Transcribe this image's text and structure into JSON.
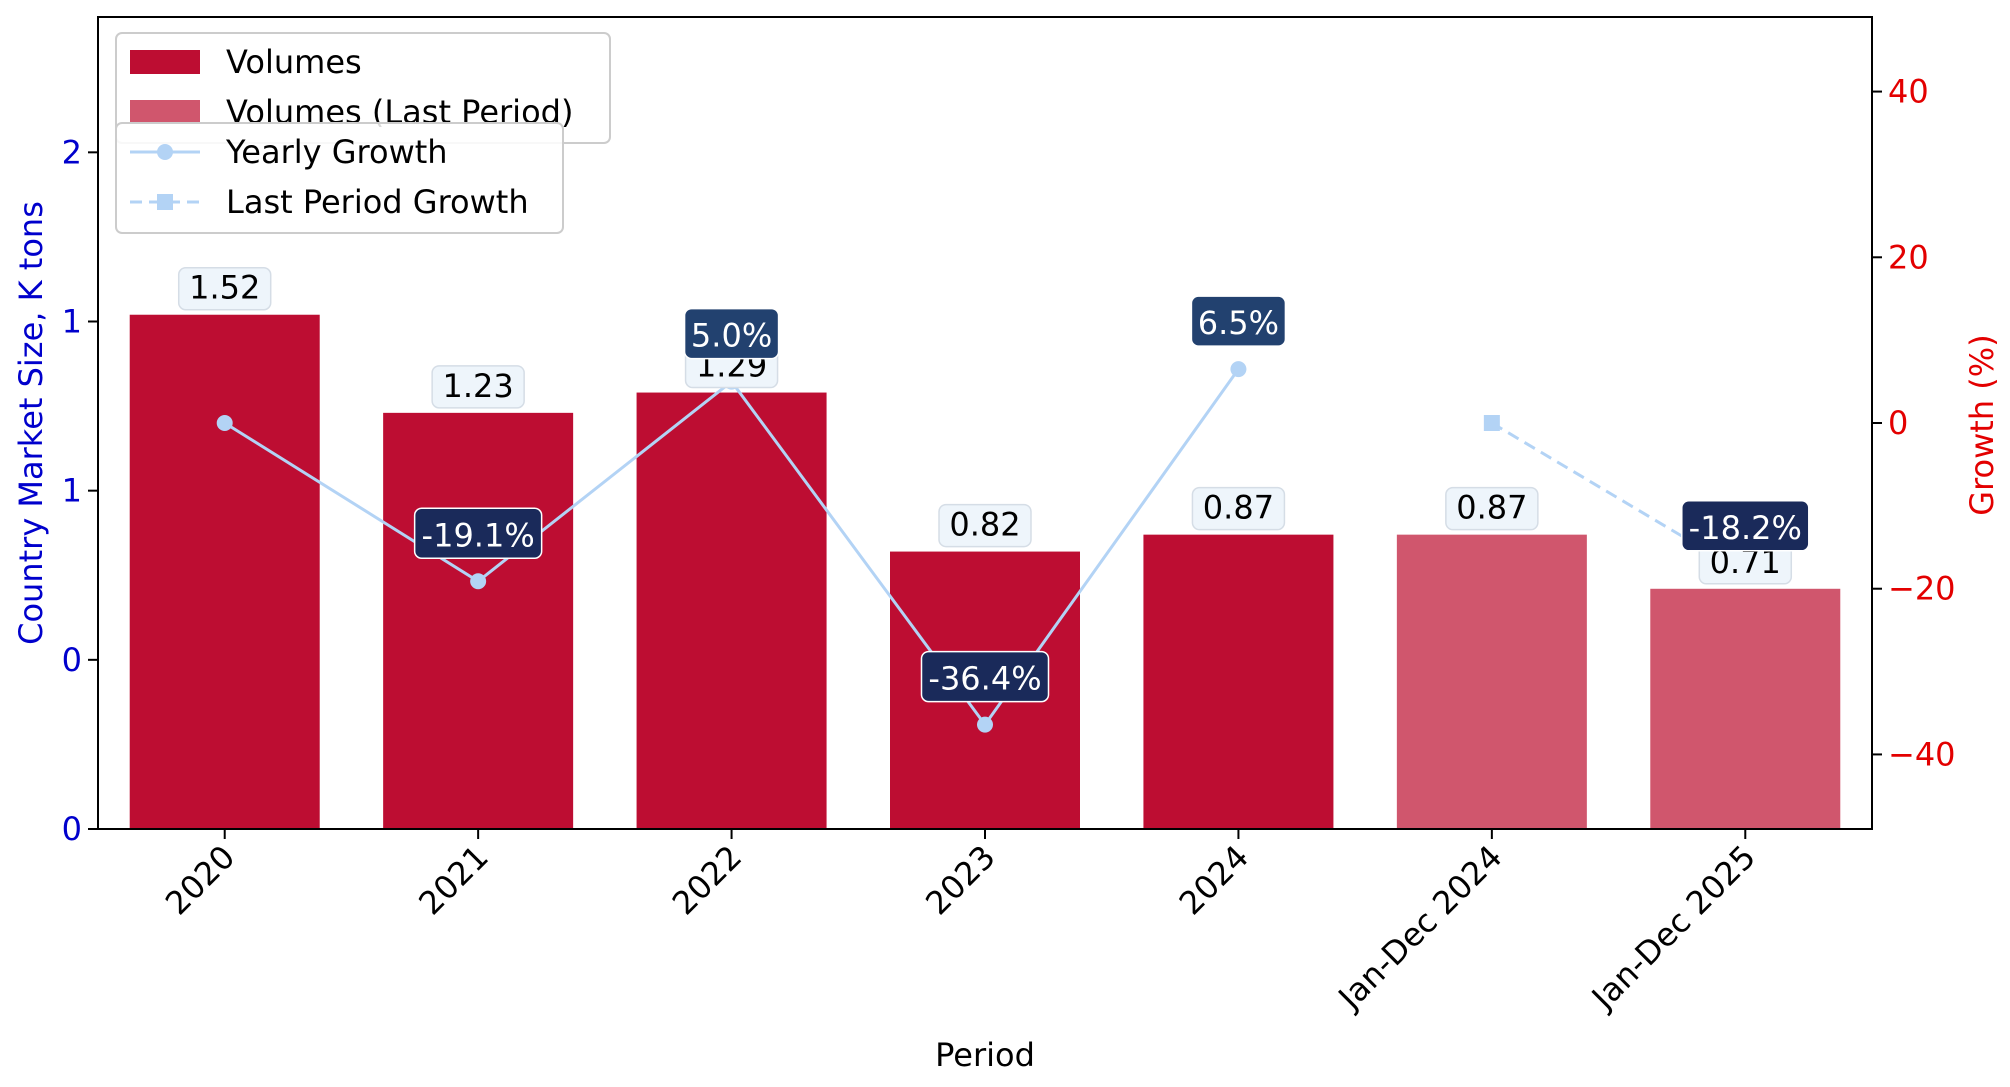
{
  "chart_data": {
    "type": "bar",
    "title": "",
    "xlabel": "Period",
    "ylabel": "Country Market Size, K tons",
    "y2label": "Growth (%)",
    "categories": [
      "2020",
      "2021",
      "2022",
      "2023",
      "2024",
      "Jan-Dec 2024",
      "Jan-Dec 2025"
    ],
    "bar_labels": [
      "1.52",
      "1.23",
      "1.29",
      "0.82",
      "0.87",
      "0.87",
      "0.71"
    ],
    "y_ticks": [
      "0",
      "0",
      "1",
      "1",
      "2"
    ],
    "y2_ticks": [
      "−40",
      "−20",
      "0",
      "20",
      "40"
    ],
    "y2_tick_values": [
      -40,
      -20,
      0,
      20,
      40
    ],
    "series": [
      {
        "name": "Volumes",
        "kind": "bar",
        "color": "#bd0d32",
        "values": [
          1.52,
          1.23,
          1.29,
          0.82,
          0.87,
          null,
          null
        ]
      },
      {
        "name": "Volumes (Last Period)",
        "kind": "bar",
        "color": "#d0566d",
        "values": [
          null,
          null,
          null,
          null,
          null,
          0.87,
          0.71
        ]
      },
      {
        "name": "Yearly Growth",
        "kind": "line",
        "axis": "right",
        "color": "#b3d3f5",
        "values": [
          0,
          -19.1,
          5.0,
          -36.4,
          6.5,
          null,
          null
        ],
        "labels": [
          null,
          "-19.1%",
          "5.0%",
          "-36.4%",
          "6.5%",
          null,
          null
        ]
      },
      {
        "name": "Last Period Growth",
        "kind": "line",
        "axis": "right",
        "style": "dashed",
        "color": "#b3d3f5",
        "values": [
          null,
          null,
          null,
          null,
          null,
          0,
          -18.2
        ],
        "labels": [
          null,
          null,
          null,
          null,
          null,
          null,
          "-18.2%"
        ]
      }
    ],
    "ylim": [
      0,
      2.4
    ],
    "y2lim": [
      -49,
      49
    ],
    "colors": {
      "left_axis": "#0000cc",
      "right_axis": "#e30000",
      "growth_label_negative": "#1a2a5a",
      "growth_label_positive": "#22416f",
      "value_label_bg": "#eef5fb"
    },
    "legend": {
      "placement": "top-left"
    }
  }
}
